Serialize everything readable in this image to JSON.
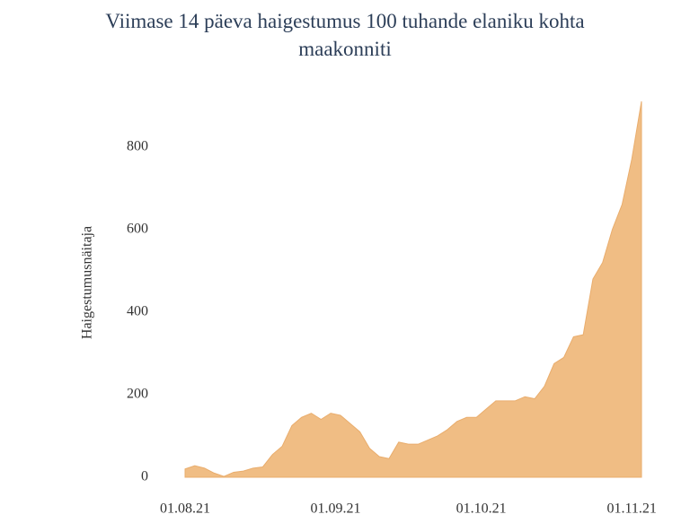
{
  "chart_data": {
    "type": "area",
    "title": "Viimase 14 päeva haigestumus 100 tuhande elaniku kohta maakonniti",
    "y_label": "Haigestumusnäitaja",
    "x": [
      "01.08.21",
      "03.08.21",
      "05.08.21",
      "07.08.21",
      "09.08.21",
      "11.08.21",
      "13.08.21",
      "15.08.21",
      "17.08.21",
      "19.08.21",
      "21.08.21",
      "23.08.21",
      "25.08.21",
      "27.08.21",
      "29.08.21",
      "31.08.21",
      "02.09.21",
      "04.09.21",
      "06.09.21",
      "08.09.21",
      "10.09.21",
      "12.09.21",
      "14.09.21",
      "16.09.21",
      "18.09.21",
      "20.09.21",
      "22.09.21",
      "24.09.21",
      "26.09.21",
      "28.09.21",
      "30.09.21",
      "02.10.21",
      "04.10.21",
      "06.10.21",
      "08.10.21",
      "10.10.21",
      "12.10.21",
      "14.10.21",
      "16.10.21",
      "18.10.21",
      "20.10.21",
      "22.10.21",
      "24.10.21",
      "26.10.21",
      "28.10.21",
      "30.10.21",
      "01.11.21",
      "03.11.21"
    ],
    "series": [
      {
        "name": "Haigestumusnäitaja",
        "color": "#f0bd84",
        "values": [
          20,
          28,
          22,
          10,
          2,
          12,
          15,
          22,
          25,
          55,
          75,
          125,
          145,
          155,
          140,
          155,
          150,
          130,
          110,
          70,
          50,
          45,
          85,
          80,
          80,
          90,
          100,
          115,
          135,
          145,
          145,
          165,
          185,
          185,
          185,
          195,
          190,
          220,
          275,
          290,
          340,
          345,
          480,
          520,
          600,
          660,
          770,
          910
        ]
      }
    ],
    "xlim": [
      "01.08.21",
      "03.11.21"
    ],
    "xticks": [
      "01.08.21",
      "01.09.21",
      "01.10.21",
      "01.11.21"
    ],
    "ylim": [
      0,
      910
    ],
    "yticks": [
      0,
      200,
      400,
      600,
      800
    ],
    "grid": false
  }
}
